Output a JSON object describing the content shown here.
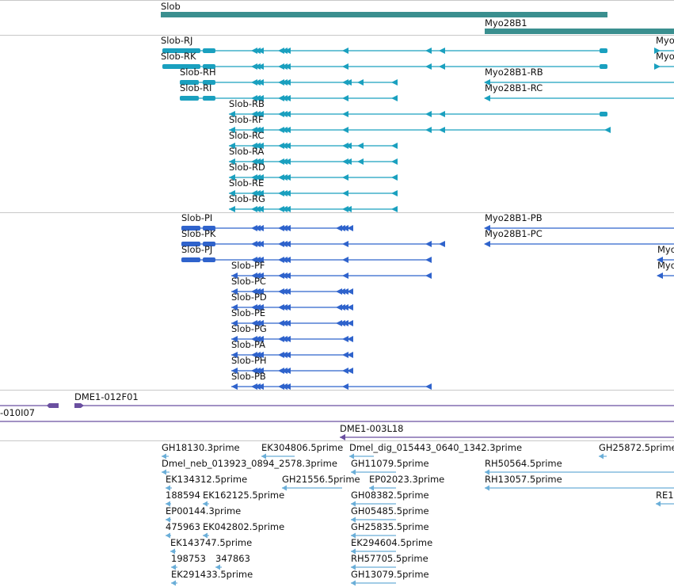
{
  "colors": {
    "gene": "#3a8f8f",
    "transcript": "#1aa0bf",
    "protein": "#2f63cc",
    "clone": "#6a4fa0",
    "est": "#6aaed8",
    "separator": "#c8c8c8"
  },
  "tracks": {
    "genes": [
      "Slob",
      "Myo28B1"
    ],
    "transcripts": [
      "Slob-RJ",
      "Myo",
      "Slob-RK",
      "Myo",
      "Slob-RH",
      "Myo28B1-RB",
      "Slob-RI",
      "Myo28B1-RC",
      "Slob-RB",
      "Slob-RF",
      "Slob-RC",
      "Slob-RA",
      "Slob-RD",
      "Slob-RE",
      "Slob-RG"
    ],
    "proteins": [
      "Slob-PI",
      "Myo28B1-PB",
      "Slob-PK",
      "Myo28B1-PC",
      "Slob-PJ",
      "Myo",
      "Slob-PF",
      "Myo",
      "Slob-PC",
      "Slob-PD",
      "Slob-PE",
      "Slob-PG",
      "Slob-PA",
      "Slob-PH",
      "Slob-PB"
    ],
    "clones": [
      "DME1-012F01",
      "-010I07",
      "DME1-003L18"
    ],
    "ests": [
      "GH18130.3prime",
      "EK304806.5prime",
      "Dmel_dig_015443_0640_1342.3prime",
      "GH25872.5prime",
      "Dmel_neb_013923_0894_2578.3prime",
      "GH11079.5prime",
      "RH50564.5prime",
      "EK134312.5prime",
      "GH21556.5prime",
      "EP02023.3prime",
      "RH13057.5prime",
      "188594",
      "EK162125.5prime",
      "GH08382.5prime",
      "RE1",
      "EP00144.3prime",
      "GH05485.5prime",
      "475963",
      "EK042802.5prime",
      "GH25835.5prime",
      "EK143747.5prime",
      "EK294604.5prime",
      "198753",
      "347863",
      "RH57705.5prime",
      "EK291433.5prime",
      "GH13079.5prime"
    ]
  }
}
